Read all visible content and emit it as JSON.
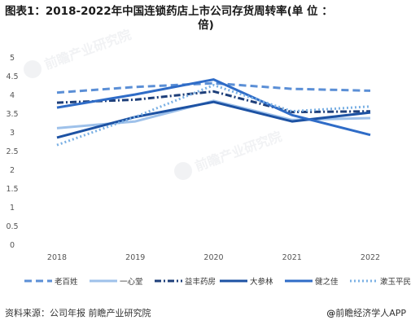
{
  "title_line1": "图表1：2018-2022年中国连锁药店上市公司存货周转率(单 位 ：",
  "title_line2": "倍)",
  "chart_data": {
    "type": "line",
    "title": "图表1：2018-2022年中国连锁药店上市公司存货周转率(单 位 ：倍)",
    "x": [
      "2018",
      "2019",
      "2020",
      "2021",
      "2022"
    ],
    "y_ticks": [
      "0",
      "0.5",
      "1",
      "1.5",
      "2",
      "2.5",
      "3",
      "3.5",
      "4",
      "4.5",
      "5"
    ],
    "ylim": [
      0,
      5
    ],
    "grid": false,
    "legend_position": "bottom",
    "series": [
      {
        "name": "老百姓",
        "values": [
          4.05,
          4.2,
          4.3,
          4.15,
          4.1
        ],
        "color": "#5b8fd6",
        "style": "dashed"
      },
      {
        "name": "一心堂",
        "values": [
          3.1,
          3.28,
          3.83,
          3.32,
          3.37
        ],
        "color": "#9ec1ea",
        "style": "solid"
      },
      {
        "name": "益丰药房",
        "values": [
          3.78,
          3.86,
          4.08,
          3.53,
          3.55
        ],
        "color": "#1e3f7a",
        "style": "dashdot"
      },
      {
        "name": "大参林",
        "values": [
          2.85,
          3.4,
          3.8,
          3.28,
          3.52
        ],
        "color": "#1d52a3",
        "style": "solid"
      },
      {
        "name": "健之佳",
        "values": [
          3.65,
          4.0,
          4.4,
          3.45,
          2.92
        ],
        "color": "#2f6cc7",
        "style": "solid"
      },
      {
        "name": "漱玉平民",
        "values": [
          2.65,
          3.4,
          4.25,
          3.55,
          3.68
        ],
        "color": "#7ab0e4",
        "style": "dotted"
      }
    ]
  },
  "watermark_text": "前瞻产业研究院",
  "source_text": "资料来源：公司年报 前瞻产业研究院",
  "brand_text": "前瞻经济学人APP",
  "brand_symbol": "@"
}
